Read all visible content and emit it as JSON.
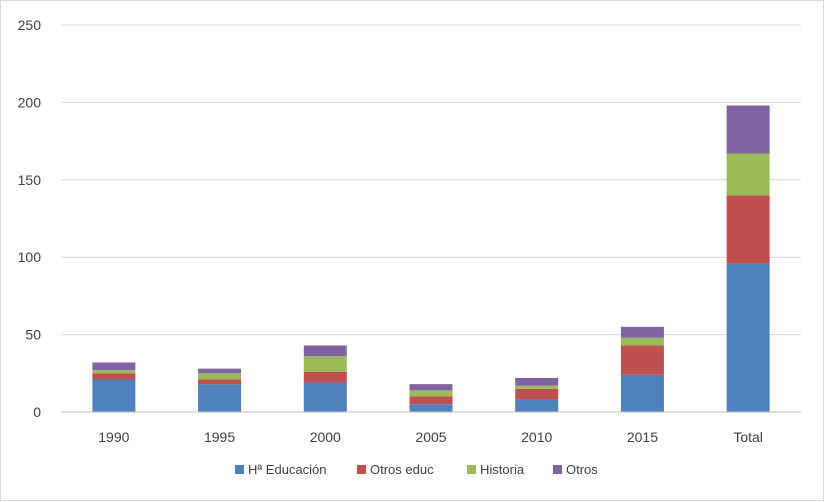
{
  "chart_data": {
    "type": "bar",
    "stacked": true,
    "categories": [
      "1990",
      "1995",
      "2000",
      "2005",
      "2010",
      "2015",
      "Total"
    ],
    "series": [
      {
        "name": "Hª Educación",
        "color": "#4F81BD",
        "values": [
          21,
          18,
          19,
          5,
          8,
          24,
          96
        ]
      },
      {
        "name": "Otros educ",
        "color": "#C0504D",
        "values": [
          4,
          3,
          7,
          5,
          7,
          19,
          44
        ]
      },
      {
        "name": "Historia",
        "color": "#9BBB59",
        "values": [
          2,
          4,
          10,
          4,
          2,
          5,
          27
        ]
      },
      {
        "name": "Otros",
        "color": "#8064A2",
        "values": [
          5,
          3,
          7,
          4,
          5,
          7,
          31
        ]
      }
    ],
    "ylim": [
      0,
      250
    ],
    "yticks": [
      "0",
      "50",
      "100",
      "150",
      "200",
      "250"
    ],
    "grid": true,
    "legend": "bottom",
    "title": "",
    "xlabel": "",
    "ylabel": ""
  }
}
